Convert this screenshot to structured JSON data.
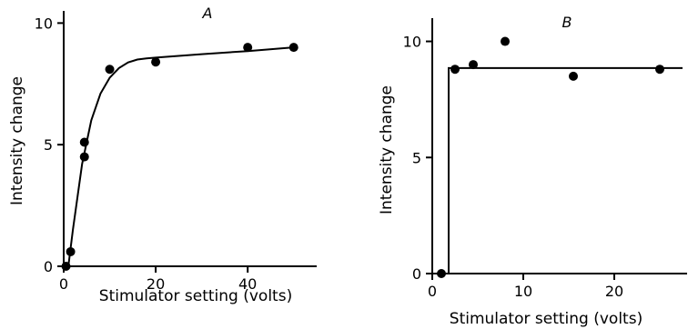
{
  "chart_data": [
    {
      "type": "scatter",
      "title": "A",
      "xlabel": "Stimulator setting (volts)",
      "ylabel": "Intensity change",
      "xlim": [
        0,
        55
      ],
      "ylim": [
        0,
        10.5
      ],
      "xticks": [
        0,
        20,
        40
      ],
      "yticks": [
        0,
        5,
        10
      ],
      "points": [
        {
          "x": 0.5,
          "y": 0.0
        },
        {
          "x": 1.5,
          "y": 0.6
        },
        {
          "x": 4.5,
          "y": 5.1
        },
        {
          "x": 4.5,
          "y": 4.5
        },
        {
          "x": 10,
          "y": 8.1
        },
        {
          "x": 20,
          "y": 8.4
        },
        {
          "x": 40,
          "y": 9.0
        },
        {
          "x": 50,
          "y": 9.0
        }
      ],
      "fit_curve": [
        [
          1.0,
          0.0
        ],
        [
          2.0,
          1.5
        ],
        [
          4.0,
          4.2
        ],
        [
          6.0,
          6.0
        ],
        [
          8.0,
          7.1
        ],
        [
          10.0,
          7.75
        ],
        [
          12.0,
          8.15
        ],
        [
          14.0,
          8.38
        ],
        [
          16.0,
          8.5
        ],
        [
          18.0,
          8.55
        ],
        [
          20.0,
          8.58
        ],
        [
          30.0,
          8.72
        ],
        [
          40.0,
          8.85
        ],
        [
          50.0,
          9.0
        ]
      ]
    },
    {
      "type": "scatter",
      "title": "B",
      "xlabel": "Stimulator setting (volts)",
      "ylabel": "Intensity change",
      "xlim": [
        0,
        28
      ],
      "ylim": [
        0,
        11
      ],
      "xticks": [
        0,
        10,
        20
      ],
      "yticks": [
        0,
        5,
        10
      ],
      "points": [
        {
          "x": 1.0,
          "y": 0.0
        },
        {
          "x": 2.5,
          "y": 8.8
        },
        {
          "x": 4.5,
          "y": 9.0
        },
        {
          "x": 8.0,
          "y": 10.0
        },
        {
          "x": 15.5,
          "y": 8.5
        },
        {
          "x": 25.0,
          "y": 8.8
        }
      ],
      "fit_curve": [
        [
          1.8,
          0.0
        ],
        [
          1.8,
          8.85
        ],
        [
          27.5,
          8.85
        ]
      ]
    }
  ]
}
